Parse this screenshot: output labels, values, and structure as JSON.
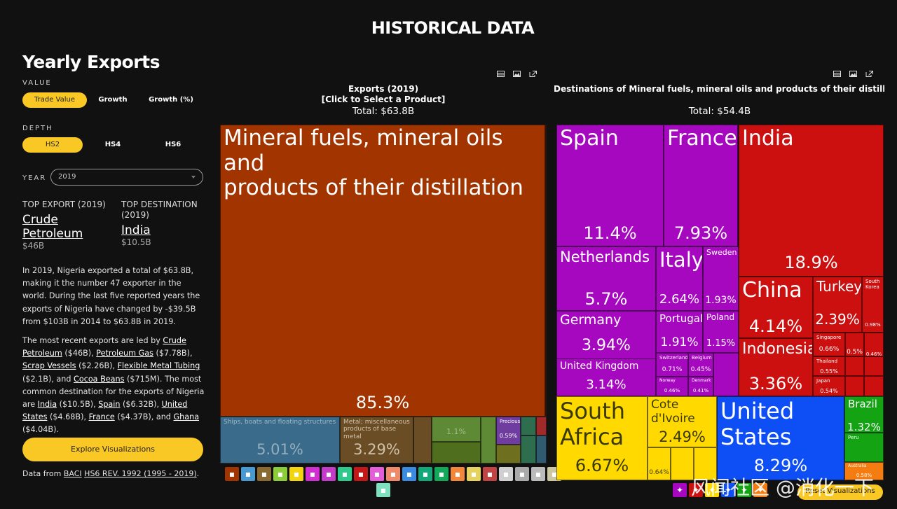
{
  "header": {
    "title": "HISTORICAL DATA"
  },
  "sidebar": {
    "title": "Yearly Exports",
    "value_label": "VALUE",
    "value_options": [
      "Trade Value",
      "Growth",
      "Growth (%)"
    ],
    "depth_label": "DEPTH",
    "depth_options": [
      "HS2",
      "HS4",
      "HS6"
    ],
    "year_label": "YEAR",
    "year_value": "2019",
    "top_export": {
      "heading": "TOP EXPORT (2019)",
      "name_1": "Crude",
      "name_2": "Petroleum",
      "value": "$46B"
    },
    "top_destination": {
      "heading_1": "TOP DESTINATION",
      "heading_2": "(2019)",
      "name": "India",
      "value": "$10.5B"
    },
    "para1": "In 2019, Nigeria exported a total of $63.8B, making it the number 47 exporter in the world. During the last five reported years the exports of Nigeria have changed by -$39.5B from $103B in 2014 to $63.8B in 2019.",
    "para2": {
      "t1": "The most recent exports are led by ",
      "l1": "Crude Petroleum",
      "t2": " ($46B), ",
      "l2": "Petroleum Gas",
      "t3": " ($7.78B), ",
      "l3": "Scrap Vessels",
      "t4": " ($2.26B), ",
      "l4": "Flexible Metal Tubing",
      "t5": " ($2.1B), and ",
      "l5": "Cocoa Beans",
      "t6": " ($715M). The most common destination for the exports of Nigeria are ",
      "l6": "India",
      "t7": " ($10.5B), ",
      "l7": "Spain",
      "t8": " ($6.32B), ",
      "l8": "United States",
      "t9": " ($4.68B), ",
      "l9": "France",
      "t10": " ($4.37B), and ",
      "l10": "Ghana",
      "t11": " ($4.04B)."
    },
    "explore_button": "Explore Visualizations",
    "data_from": {
      "t1": "Data from ",
      "l1": "BACI",
      "l2": "HS6 REV. 1992 (1995 - 2019)",
      "t2": "."
    }
  },
  "left_chart": {
    "title": "Exports (2019)",
    "subtitle": "[Click to Select a Product]",
    "total": "Total: $63.8B",
    "main_label_1": "Mineral fuels, mineral oils and",
    "main_label_2": "products of their distillation",
    "main_pct": "85.3%",
    "small": [
      {
        "name": "Ships, boats and floating structures",
        "pct": "5.01%"
      },
      {
        "name": "Metal; miscellaneous products of base metal",
        "pct": "3.29%"
      },
      {
        "name": "",
        "pct": "1.1%"
      },
      {
        "name": "Precious...",
        "pct": "0.59%"
      }
    ],
    "colors": {
      "mineral": "#a23400",
      "ships": "#3a6b8a",
      "metal": "#6b4d25",
      "food": "#5f8a35",
      "precious": "#6f3da0",
      "misc": "#2f6d4f"
    }
  },
  "right_chart": {
    "title": "Destinations of Mineral fuels, mineral oils and products of their distillation...",
    "total": "Total: $54.4B",
    "countries": [
      {
        "name": "Spain",
        "pct": "11.4%"
      },
      {
        "name": "France",
        "pct": "7.93%"
      },
      {
        "name": "India",
        "pct": "18.9%"
      },
      {
        "name": "Netherlands",
        "pct": "5.7%"
      },
      {
        "name": "Italy",
        "pct": "2.64%"
      },
      {
        "name": "Sweden",
        "pct": "1.93%"
      },
      {
        "name": "Germany",
        "pct": "3.94%"
      },
      {
        "name": "Portugal",
        "pct": "1.91%"
      },
      {
        "name": "Poland",
        "pct": "1.15%"
      },
      {
        "name": "United Kingdom",
        "pct": "3.14%"
      },
      {
        "name": "Switzerland",
        "pct": "0.71%"
      },
      {
        "name": "Belgium",
        "pct": "0.45%"
      },
      {
        "name": "Norway",
        "pct": "0.46%"
      },
      {
        "name": "Denmark",
        "pct": "0.41%"
      },
      {
        "name": "China",
        "pct": "4.14%"
      },
      {
        "name": "Turkey",
        "pct": "2.39%"
      },
      {
        "name": "South Korea",
        "pct": "0.98%"
      },
      {
        "name": "Indonesia",
        "pct": "3.36%"
      },
      {
        "name": "Singapore",
        "pct": "0.66%"
      },
      {
        "name": "",
        "pct": "0.5%"
      },
      {
        "name": "",
        "pct": "0.46%"
      },
      {
        "name": "Thailand",
        "pct": "0.55%"
      },
      {
        "name": "Japan",
        "pct": "0.54%"
      },
      {
        "name": "South Africa",
        "pct": "6.67%"
      },
      {
        "name": "Cote d'Ivoire",
        "pct": "2.49%"
      },
      {
        "name": "",
        "pct": "0.64%"
      },
      {
        "name": "United States",
        "pct": "8.29%"
      },
      {
        "name": "Brazil",
        "pct": "1.32%"
      },
      {
        "name": "Peru",
        "pct": ""
      },
      {
        "name": "Australia",
        "pct": "0.58%"
      }
    ],
    "colors": {
      "europe": "#a608bf",
      "asia": "#cc1010",
      "africa": "#ffd900",
      "namerica": "#0d4ef5",
      "samerica": "#13a313",
      "oceania": "#f57c10"
    }
  },
  "reset_button": "Reset Visualizations",
  "watermark": "风闻社区 @消化一下",
  "icons": [
    "tool-icon",
    "road-icon",
    "hide-icon",
    "plant-icon",
    "fruit-icon",
    "gem-icon",
    "flask-icon",
    "plastic-icon",
    "rubber-icon",
    "box-icon",
    "wood-icon",
    "paper-icon",
    "textile-icon",
    "shirt-icon",
    "shoe-icon",
    "stone-icon",
    "gauge-icon",
    "metal-icon",
    "machine-icon",
    "vehicle-icon",
    "optics-icon",
    "misc-icon"
  ],
  "icon_colors": [
    "#a23400",
    "#4a9ad2",
    "#8a6a30",
    "#8ccc3a",
    "#f2d40f",
    "#d12fd1",
    "#c43ac9",
    "#2fc98c",
    "#c41818",
    "#e45fd7",
    "#ef8a6a",
    "#3b8be0",
    "#12a87a",
    "#14a85a",
    "#f2873a",
    "#e6d25f",
    "#c04444",
    "#d0d0d0",
    "#aaaaaa",
    "#bbbbbb",
    "#ccc7a0",
    "#7fe0c0"
  ]
}
